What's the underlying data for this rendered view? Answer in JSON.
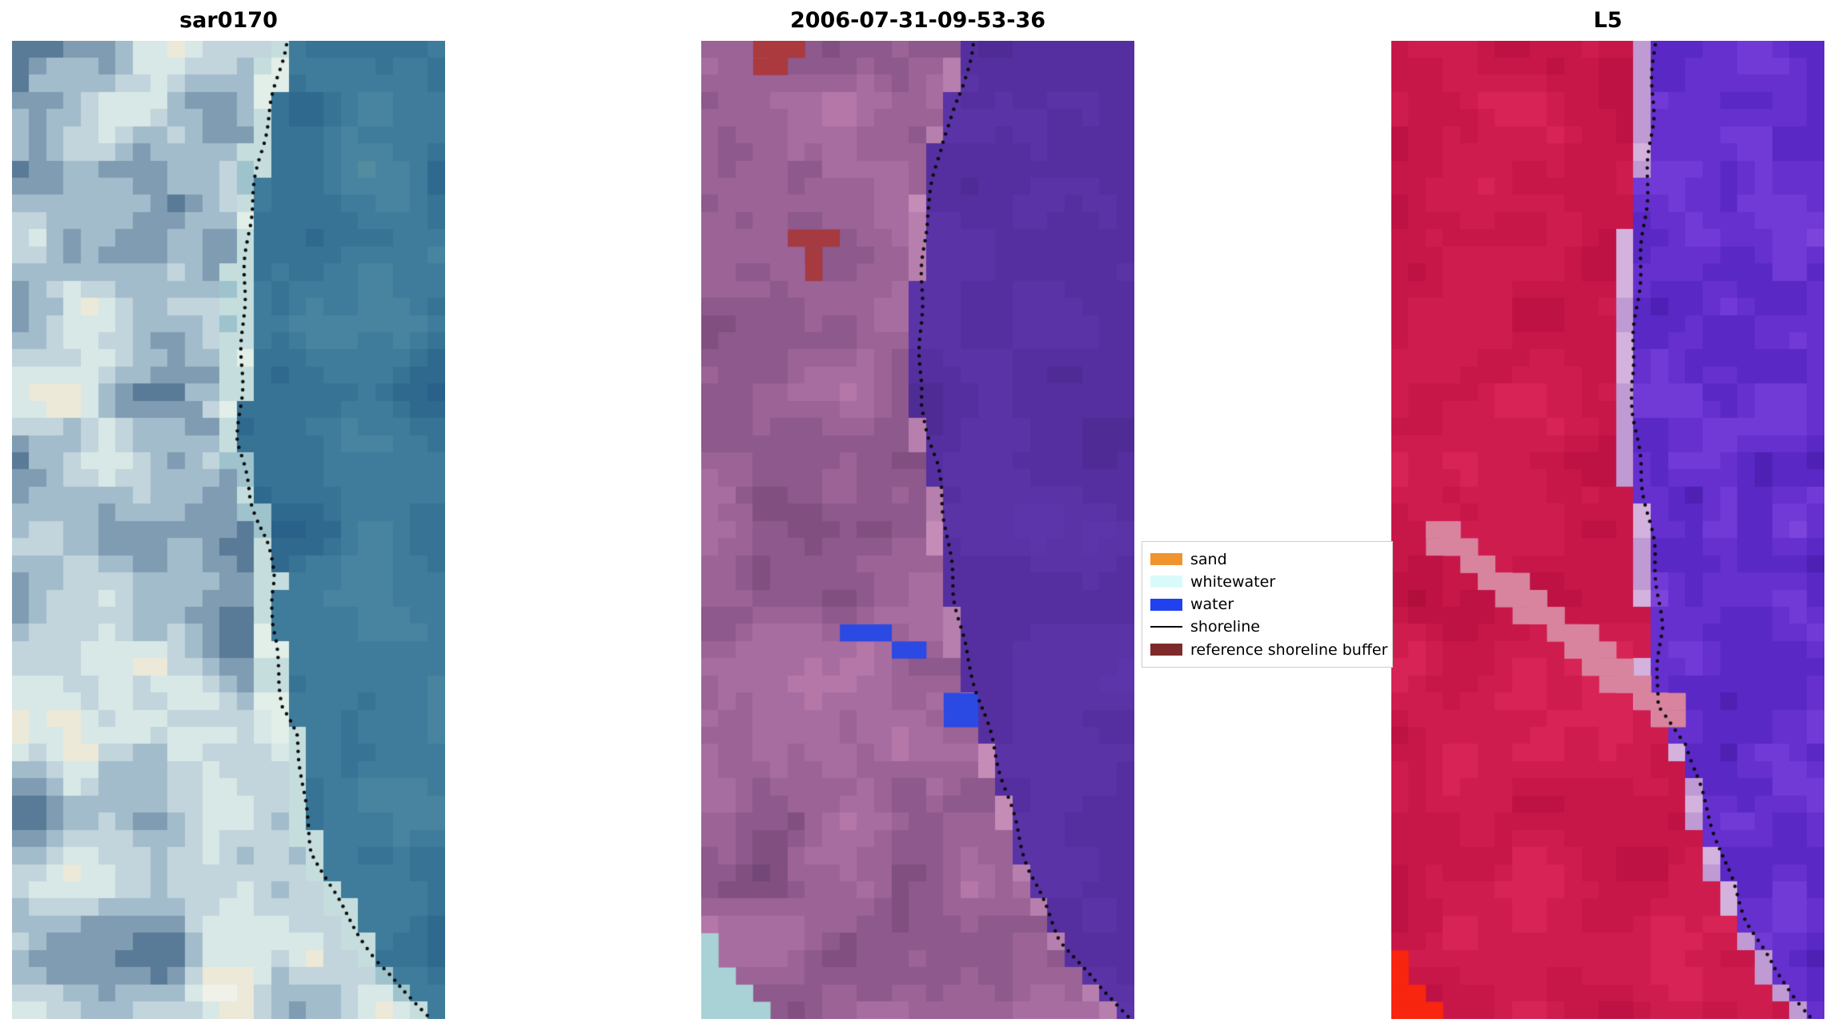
{
  "figure": {
    "background": "#ffffff",
    "panels": [
      {
        "title": "sar0170",
        "seed": 7,
        "grid": {
          "cols": 25,
          "rows": 57
        },
        "land_colors": [
          "#46688a",
          "#5a7b97",
          "#7f9cb2",
          "#a3bccb",
          "#c2d4dc",
          "#d8e8e6",
          "#ece9d8",
          "#f0f2ea"
        ],
        "water_colors": [
          "#29618a",
          "#30698e",
          "#377394",
          "#3f7c9b",
          "#4884a0",
          "#538b9f"
        ],
        "edge_colors": [
          "#9ec3cc",
          "#c5dedd",
          "#e2eee8"
        ],
        "edge_width": 0.055,
        "boundary": [
          [
            0.645,
            0
          ],
          [
            0.615,
            0.06
          ],
          [
            0.588,
            0.12
          ],
          [
            0.561,
            0.2
          ],
          [
            0.547,
            0.28
          ],
          [
            0.542,
            0.35
          ],
          [
            0.537,
            0.41
          ],
          [
            0.569,
            0.47
          ],
          [
            0.605,
            0.51
          ],
          [
            0.623,
            0.55
          ],
          [
            0.615,
            0.6
          ],
          [
            0.631,
            0.645
          ],
          [
            0.635,
            0.68
          ],
          [
            0.669,
            0.71
          ],
          [
            0.685,
            0.75
          ],
          [
            0.695,
            0.79
          ],
          [
            0.712,
            0.83
          ],
          [
            0.745,
            0.86
          ],
          [
            0.799,
            0.9
          ],
          [
            0.853,
            0.94
          ],
          [
            0.912,
            0.97
          ],
          [
            0.983,
            1
          ]
        ],
        "shoreline": [
          [
            0.63,
            0
          ],
          [
            0.6,
            0.06
          ],
          [
            0.573,
            0.12
          ],
          [
            0.546,
            0.2
          ],
          [
            0.532,
            0.28
          ],
          [
            0.527,
            0.35
          ],
          [
            0.522,
            0.41
          ],
          [
            0.554,
            0.47
          ],
          [
            0.59,
            0.51
          ],
          [
            0.608,
            0.55
          ],
          [
            0.6,
            0.6
          ],
          [
            0.616,
            0.645
          ],
          [
            0.62,
            0.68
          ],
          [
            0.654,
            0.71
          ],
          [
            0.67,
            0.75
          ],
          [
            0.68,
            0.79
          ],
          [
            0.697,
            0.83
          ],
          [
            0.73,
            0.86
          ],
          [
            0.784,
            0.9
          ],
          [
            0.838,
            0.94
          ],
          [
            0.897,
            0.97
          ],
          [
            0.968,
            1
          ]
        ],
        "patches": []
      },
      {
        "title": "2006-07-31-09-53-36",
        "seed": 13,
        "grid": {
          "cols": 25,
          "rows": 57
        },
        "land_colors": [
          "#744779",
          "#815081",
          "#8e598c",
          "#9b6396",
          "#a86da0",
          "#b477a8",
          "#c083b0"
        ],
        "water_colors": [
          "#4f2b96",
          "#552f9f",
          "#5a33a7",
          "#5c35ab"
        ],
        "edge_colors": [
          "#b77fad",
          "#c58cb8"
        ],
        "edge_width": 0.022,
        "boundary": [
          [
            0.613,
            0
          ],
          [
            0.59,
            0.05
          ],
          [
            0.543,
            0.1
          ],
          [
            0.51,
            0.18
          ],
          [
            0.495,
            0.28
          ],
          [
            0.49,
            0.37
          ],
          [
            0.53,
            0.43
          ],
          [
            0.557,
            0.5
          ],
          [
            0.576,
            0.57
          ],
          [
            0.6,
            0.63
          ],
          [
            0.646,
            0.7
          ],
          [
            0.7,
            0.78
          ],
          [
            0.75,
            0.85
          ],
          [
            0.82,
            0.92
          ],
          [
            0.91,
            0.97
          ],
          [
            0.98,
            1
          ]
        ],
        "shoreline": [
          [
            0.625,
            0
          ],
          [
            0.602,
            0.05
          ],
          [
            0.555,
            0.1
          ],
          [
            0.522,
            0.18
          ],
          [
            0.507,
            0.28
          ],
          [
            0.502,
            0.37
          ],
          [
            0.542,
            0.43
          ],
          [
            0.569,
            0.5
          ],
          [
            0.588,
            0.57
          ],
          [
            0.612,
            0.63
          ],
          [
            0.658,
            0.7
          ],
          [
            0.712,
            0.78
          ],
          [
            0.762,
            0.85
          ],
          [
            0.832,
            0.92
          ],
          [
            0.922,
            0.97
          ],
          [
            0.992,
            1
          ]
        ],
        "patches": [
          {
            "name": "reference-buffer-patch-top",
            "color": "#ab3a3f",
            "rects": [
              [
                0.1,
                0,
                0.13,
                0.017
              ],
              [
                0.13,
                0.017,
                0.08,
                0.015
              ]
            ]
          },
          {
            "name": "reference-buffer-patch-mid",
            "color": "#a53a40",
            "rects": [
              [
                0.215,
                0.196,
                0.095,
                0.016
              ],
              [
                0.243,
                0.212,
                0.04,
                0.03
              ]
            ]
          },
          {
            "name": "water-class-patches",
            "color": "#2b49e3",
            "rects": [
              [
                0.3,
                0.589,
                0.135,
                0.018
              ],
              [
                0.427,
                0.617,
                0.093,
                0.019
              ],
              [
                0.543,
                0.674,
                0.088,
                0.033
              ]
            ]
          },
          {
            "name": "whitewater-corner-patch",
            "color": "#a9d2d6",
            "rects": [
              [
                0,
                0.918,
                0.035,
                0.082
              ],
              [
                0,
                0.942,
                0.07,
                0.058
              ],
              [
                0,
                0.962,
                0.105,
                0.038
              ],
              [
                0,
                0.981,
                0.145,
                0.019
              ]
            ]
          }
        ]
      },
      {
        "title": "L5",
        "seed": 21,
        "grid": {
          "cols": 25,
          "rows": 57
        },
        "land_colors": [
          "#b20e3c",
          "#bd1243",
          "#c71749",
          "#cf1c4f",
          "#d72355",
          "#cb184b"
        ],
        "water_colors": [
          "#4f20b4",
          "#5a28c4",
          "#6530ce",
          "#713ad6",
          "#7d44dc"
        ],
        "edge_colors": [
          "#c09ad2",
          "#d3b2de"
        ],
        "edge_width": 0.03,
        "water_weights": [
          0.25,
          0.65,
          0.1
        ],
        "boundary": [
          [
            0.6,
            0
          ],
          [
            0.594,
            0.08
          ],
          [
            0.578,
            0.15
          ],
          [
            0.56,
            0.25
          ],
          [
            0.546,
            0.35
          ],
          [
            0.568,
            0.45
          ],
          [
            0.594,
            0.52
          ],
          [
            0.613,
            0.6
          ],
          [
            0.605,
            0.68
          ],
          [
            0.676,
            0.72
          ],
          [
            0.713,
            0.78
          ],
          [
            0.757,
            0.84
          ],
          [
            0.81,
            0.9
          ],
          [
            0.876,
            0.95
          ],
          [
            0.965,
            1
          ]
        ],
        "shoreline": [
          [
            0.61,
            0
          ],
          [
            0.604,
            0.08
          ],
          [
            0.588,
            0.15
          ],
          [
            0.57,
            0.25
          ],
          [
            0.556,
            0.35
          ],
          [
            0.578,
            0.45
          ],
          [
            0.604,
            0.52
          ],
          [
            0.623,
            0.6
          ],
          [
            0.615,
            0.68
          ],
          [
            0.686,
            0.72
          ],
          [
            0.723,
            0.78
          ],
          [
            0.767,
            0.84
          ],
          [
            0.82,
            0.9
          ],
          [
            0.886,
            0.95
          ],
          [
            0.975,
            1
          ]
        ],
        "patches": [
          {
            "name": "pink-sandbar-streak",
            "color": "#d9849f",
            "from": [
              0.085,
              0.503
            ],
            "to": [
              0.625,
              0.688
            ],
            "width": 2
          },
          {
            "name": "bright-red-corner-patch",
            "color": "#f8250f",
            "rects": [
              [
                0,
                0.928,
                0.028,
                0.072
              ],
              [
                0,
                0.951,
                0.055,
                0.049
              ],
              [
                0,
                0.969,
                0.08,
                0.031
              ],
              [
                0,
                0.985,
                0.1,
                0.015
              ]
            ]
          }
        ]
      }
    ],
    "legend": {
      "items": [
        {
          "label": "sand",
          "color": "#f0932e",
          "marker": "patch"
        },
        {
          "label": "whitewater",
          "color": "#d8fbfa",
          "marker": "patch"
        },
        {
          "label": "water",
          "color": "#1f41f0",
          "marker": "patch"
        },
        {
          "label": "shoreline",
          "color": "#000000",
          "marker": "line"
        },
        {
          "label": "reference shoreline buffer",
          "color": "#7e2a2a",
          "marker": "patch"
        }
      ]
    }
  }
}
